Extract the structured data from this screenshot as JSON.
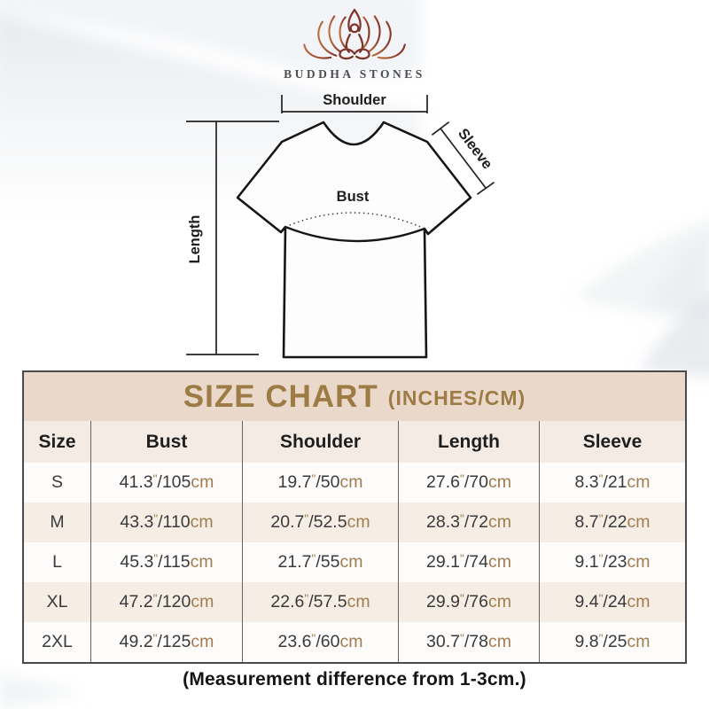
{
  "brand": {
    "name": "BUDDHA STONES",
    "logo_icon": "lotus-meditation-icon"
  },
  "diagram": {
    "shoulder_label": "Shoulder",
    "sleeve_label": "Sleeve",
    "bust_label": "Bust",
    "length_label": "Length"
  },
  "size_chart": {
    "title": "SIZE CHART",
    "title_unit": "(INCHES/CM)",
    "columns": [
      "Size",
      "Bust",
      "Shoulder",
      "Length",
      "Sleeve"
    ],
    "unit_inch_mark": "\"",
    "separator": "/",
    "unit_cm": "cm",
    "rows": [
      {
        "size": "S",
        "measurements": [
          {
            "in": "41.3",
            "cm": "105"
          },
          {
            "in": "19.7",
            "cm": "50"
          },
          {
            "in": "27.6",
            "cm": "70"
          },
          {
            "in": "8.3",
            "cm": "21"
          }
        ]
      },
      {
        "size": "M",
        "measurements": [
          {
            "in": "43.3",
            "cm": "110"
          },
          {
            "in": "20.7",
            "cm": "52.5"
          },
          {
            "in": "28.3",
            "cm": "72"
          },
          {
            "in": "8.7",
            "cm": "22"
          }
        ]
      },
      {
        "size": "L",
        "measurements": [
          {
            "in": "45.3",
            "cm": "115"
          },
          {
            "in": "21.7",
            "cm": "55"
          },
          {
            "in": "29.1",
            "cm": "74"
          },
          {
            "in": "9.1",
            "cm": "23"
          }
        ]
      },
      {
        "size": "XL",
        "measurements": [
          {
            "in": "47.2",
            "cm": "120"
          },
          {
            "in": "22.6",
            "cm": "57.5"
          },
          {
            "in": "29.9",
            "cm": "76"
          },
          {
            "in": "9.4",
            "cm": "24"
          }
        ]
      },
      {
        "size": "2XL",
        "measurements": [
          {
            "in": "49.2",
            "cm": "125"
          },
          {
            "in": "23.6",
            "cm": "60"
          },
          {
            "in": "30.7",
            "cm": "78"
          },
          {
            "in": "9.8",
            "cm": "25"
          }
        ]
      }
    ]
  },
  "footer": {
    "note": "(Measurement difference from 1-3cm.)"
  },
  "colors": {
    "title_text": "#9c7b45",
    "title_bg": "#ead9cb",
    "header_row_bg": "#f4ece4",
    "alt_row_bg": "#f6ede5",
    "row_bg": "#fdfcfb",
    "table_border": "#4a4a4a",
    "cell_text": "#3a3a3b",
    "unit_text": "#a17c4f",
    "logo_gradient_start": "#bc6d3f",
    "logo_gradient_end": "#823627"
  }
}
